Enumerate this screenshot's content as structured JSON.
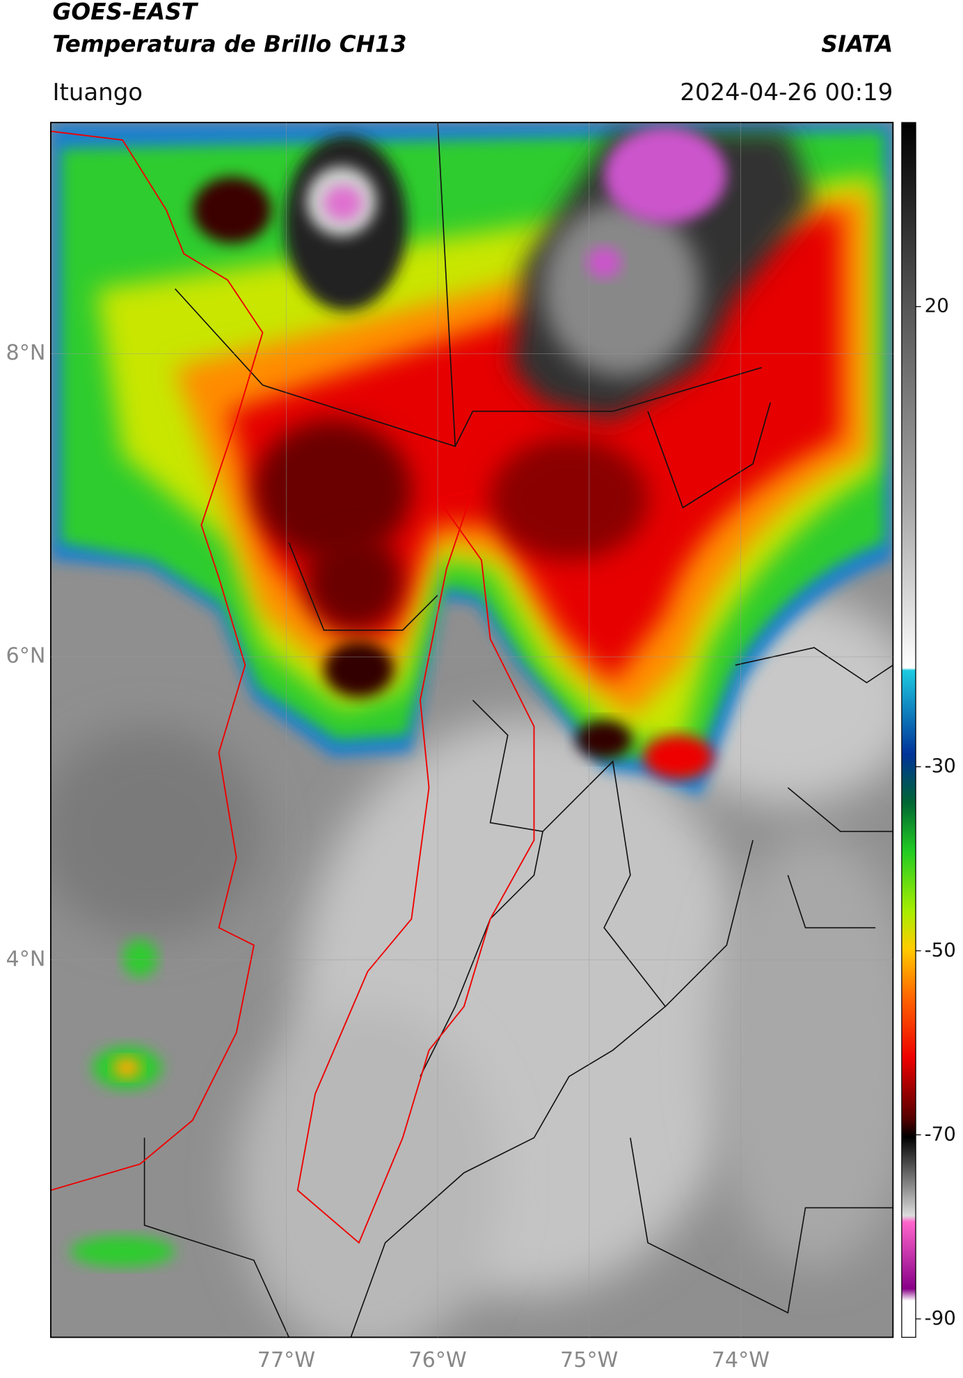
{
  "header": {
    "title": "GOES-EAST",
    "subtitle": "Temperatura de Brillo CH13",
    "brand": "SIATA",
    "location": "Ituango",
    "datetime": "2024-04-26 00:19"
  },
  "map": {
    "xlim": [
      -78.555,
      -72.994
    ],
    "ylim": [
      1.509,
      9.526
    ],
    "xticks": [
      {
        "value": -77,
        "label": "77°W"
      },
      {
        "value": -76,
        "label": "76°W"
      },
      {
        "value": -75,
        "label": "75°W"
      },
      {
        "value": -74,
        "label": "74°W"
      }
    ],
    "yticks": [
      {
        "value": 8,
        "label": "8°N"
      },
      {
        "value": 6,
        "label": "6°N"
      },
      {
        "value": 4,
        "label": "4°N"
      }
    ]
  },
  "colorbar": {
    "lim": [
      -92,
      40
    ],
    "ticks": [
      20,
      -30,
      -50,
      -70,
      -90
    ]
  }
}
